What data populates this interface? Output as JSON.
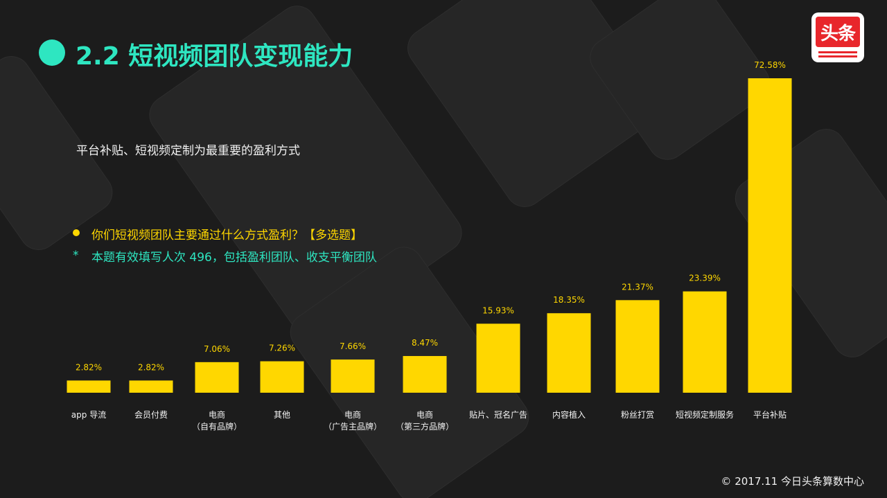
{
  "header": {
    "title": "2.2 短视频团队变现能力",
    "logo_text": "头条"
  },
  "subtitle": "平台补贴、短视频定制为最重要的盈利方式",
  "question": "你们短视频团队主要通过什么方式盈利？【多选题】",
  "note": {
    "star": "*",
    "text": "本题有效填写人次 496，包括盈利团队、收支平衡团队"
  },
  "footer": "© 2017.11 今日头条算数中心",
  "colors": {
    "background": "#1c1c1c",
    "accent_teal": "#2ee6c1",
    "bar_yellow": "#ffd700",
    "logo_red": "#e8262b"
  },
  "chart_data": {
    "type": "bar",
    "categories": [
      [
        "app 导流"
      ],
      [
        "会员付费"
      ],
      [
        "电商",
        "（自有品牌）"
      ],
      [
        "其他"
      ],
      [
        "电商",
        "（广告主品牌）"
      ],
      [
        "电商",
        "（第三方品牌）"
      ],
      [
        "贴片、冠名广告"
      ],
      [
        "内容植入"
      ],
      [
        "粉丝打赏"
      ],
      [
        "短视频定制服务"
      ],
      [
        "平台补贴"
      ]
    ],
    "values": [
      2.82,
      2.82,
      7.06,
      7.26,
      7.66,
      8.47,
      15.93,
      18.35,
      21.37,
      23.39,
      72.58
    ],
    "value_labels": [
      "2.82%",
      "2.82%",
      "7.06%",
      "7.26%",
      "7.66%",
      "8.47%",
      "15.93%",
      "18.35%",
      "21.37%",
      "23.39%",
      "72.58%"
    ],
    "title": "",
    "xlabel": "",
    "ylabel": "",
    "ylim": [
      0,
      72.58
    ],
    "grid": false,
    "legend": "none"
  }
}
